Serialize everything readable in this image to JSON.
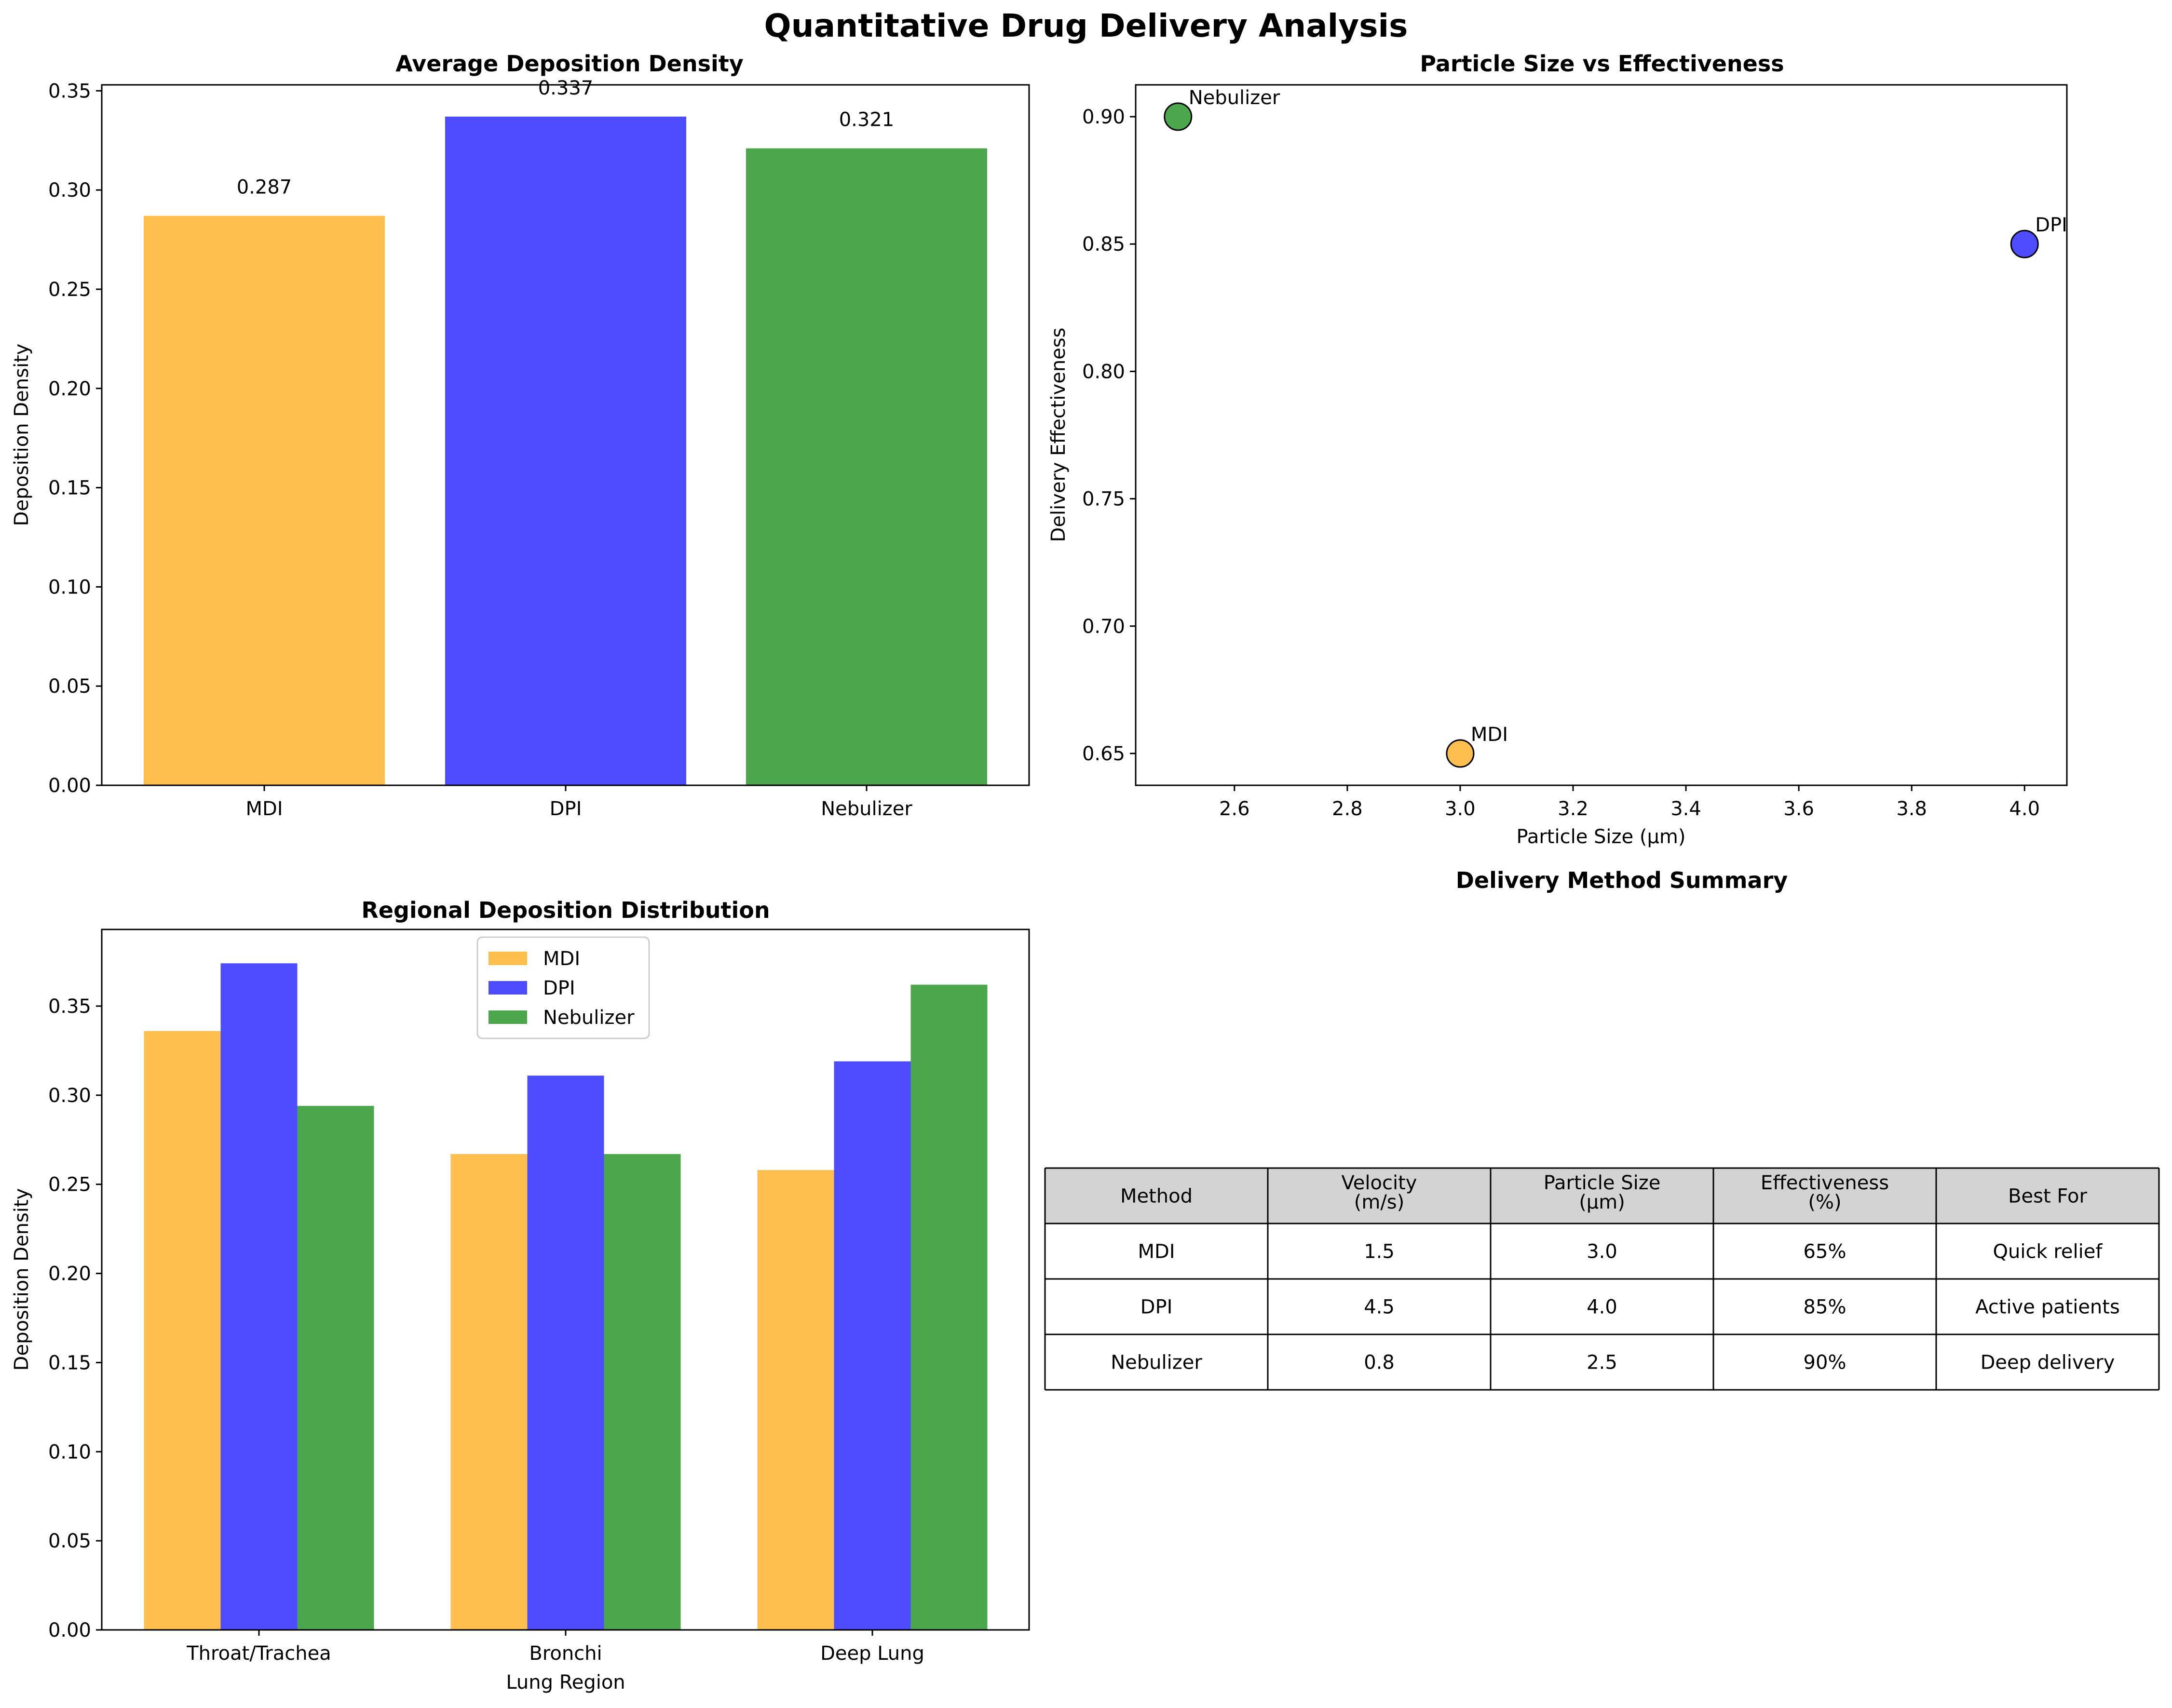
{
  "figure": {
    "title": "Quantitative Drug Delivery Analysis"
  },
  "colors": {
    "MDI": "#FFBF4F",
    "DPI": "#4D4DFF",
    "Nebulizer": "#4CA64C"
  },
  "chart_data": [
    {
      "type": "bar",
      "title": "Average Deposition Density",
      "xlabel": "",
      "ylabel": "Deposition Density",
      "categories": [
        "MDI",
        "DPI",
        "Nebulizer"
      ],
      "values": [
        0.287,
        0.337,
        0.321
      ],
      "data_labels": [
        "0.287",
        "0.337",
        "0.321"
      ],
      "ylim": [
        0,
        0.353
      ],
      "yticks": [
        0.0,
        0.05,
        0.1,
        0.15,
        0.2,
        0.25,
        0.3,
        0.35
      ],
      "ytick_labels": [
        "0.00",
        "0.05",
        "0.10",
        "0.15",
        "0.20",
        "0.25",
        "0.30",
        "0.35"
      ],
      "grid": false
    },
    {
      "type": "scatter",
      "title": "Particle Size vs Effectiveness",
      "xlabel": "Particle Size (µm)",
      "ylabel": "Delivery Effectiveness",
      "points": [
        {
          "label": "MDI",
          "x": 3.0,
          "y": 0.65
        },
        {
          "label": "DPI",
          "x": 4.0,
          "y": 0.85
        },
        {
          "label": "Nebulizer",
          "x": 2.5,
          "y": 0.9
        }
      ],
      "xlim": [
        2.425,
        4.075
      ],
      "ylim": [
        0.6375,
        0.9125
      ],
      "xticks": [
        2.6,
        2.8,
        3.0,
        3.2,
        3.4,
        3.6,
        3.8,
        4.0
      ],
      "xtick_labels": [
        "2.6",
        "2.8",
        "3.0",
        "3.2",
        "3.4",
        "3.6",
        "3.8",
        "4.0"
      ],
      "yticks": [
        0.65,
        0.7,
        0.75,
        0.8,
        0.85,
        0.9
      ],
      "ytick_labels": [
        "0.65",
        "0.70",
        "0.75",
        "0.80",
        "0.85",
        "0.90"
      ],
      "grid": false
    },
    {
      "type": "bar",
      "title": "Regional Deposition Distribution",
      "xlabel": "Lung Region",
      "ylabel": "Deposition Density",
      "categories": [
        "Throat/Trachea",
        "Bronchi",
        "Deep Lung"
      ],
      "series": [
        {
          "name": "MDI",
          "values": [
            0.336,
            0.267,
            0.258
          ]
        },
        {
          "name": "DPI",
          "values": [
            0.374,
            0.311,
            0.319
          ]
        },
        {
          "name": "Nebulizer",
          "values": [
            0.294,
            0.267,
            0.362
          ]
        }
      ],
      "ylim": [
        0,
        0.393
      ],
      "yticks": [
        0.0,
        0.05,
        0.1,
        0.15,
        0.2,
        0.25,
        0.3,
        0.35
      ],
      "ytick_labels": [
        "0.00",
        "0.05",
        "0.10",
        "0.15",
        "0.20",
        "0.25",
        "0.30",
        "0.35"
      ],
      "legend_position": "upper center",
      "grid": false
    },
    {
      "type": "table",
      "title": "Delivery Method Summary",
      "columns": [
        [
          "Method"
        ],
        [
          "Velocity",
          "(m/s)"
        ],
        [
          "Particle Size",
          "(µm)"
        ],
        [
          "Effectiveness",
          "(%)"
        ],
        [
          "Best For"
        ]
      ],
      "rows": [
        [
          "MDI",
          "1.5",
          "3.0",
          "65%",
          "Quick relief"
        ],
        [
          "DPI",
          "4.5",
          "4.0",
          "85%",
          "Active patients"
        ],
        [
          "Nebulizer",
          "0.8",
          "2.5",
          "90%",
          "Deep delivery"
        ]
      ]
    }
  ]
}
